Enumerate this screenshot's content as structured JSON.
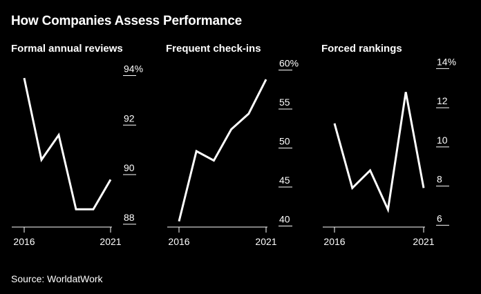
{
  "title": "How Companies Assess Performance",
  "source": "Source: WorldatWork",
  "colors": {
    "background": "#000000",
    "line": "#ffffff",
    "axis": "#ffffff"
  },
  "chart_data": [
    {
      "type": "line",
      "title": "Formal annual reviews",
      "x": [
        2016,
        2017,
        2018,
        2019,
        2020,
        2021
      ],
      "x_tick_labels": [
        "2016",
        "2021"
      ],
      "values": [
        93.9,
        90.6,
        91.6,
        88.6,
        88.6,
        89.8
      ],
      "ylim": [
        87.8,
        94.6
      ],
      "y_ticks": [
        88,
        90,
        92,
        94
      ],
      "y_tick_labels": [
        "88",
        "90",
        "92",
        "94%"
      ],
      "xlabel": "",
      "ylabel": ""
    },
    {
      "type": "line",
      "title": "Frequent check-ins",
      "x": [
        2016,
        2017,
        2018,
        2019,
        2020,
        2021
      ],
      "x_tick_labels": [
        "2016",
        "2021"
      ],
      "values": [
        40.6,
        49.6,
        48.4,
        52.4,
        54.4,
        58.8
      ],
      "ylim": [
        39.6,
        61.2
      ],
      "y_ticks": [
        40,
        45,
        50,
        55,
        60
      ],
      "y_tick_labels": [
        "40",
        "45",
        "50",
        "55",
        "60%"
      ],
      "xlabel": "",
      "ylabel": ""
    },
    {
      "type": "line",
      "title": "Forced rankings",
      "x": [
        2016,
        2017,
        2018,
        2019,
        2020,
        2021
      ],
      "x_tick_labels": [
        "2016",
        "2021"
      ],
      "values": [
        11.2,
        7.9,
        8.8,
        6.8,
        12.8,
        7.9
      ],
      "ylim": [
        5.8,
        14.4
      ],
      "y_ticks": [
        6,
        8,
        10,
        12,
        14
      ],
      "y_tick_labels": [
        "6",
        "8",
        "10",
        "12",
        "14%"
      ],
      "xlabel": "",
      "ylabel": ""
    }
  ]
}
